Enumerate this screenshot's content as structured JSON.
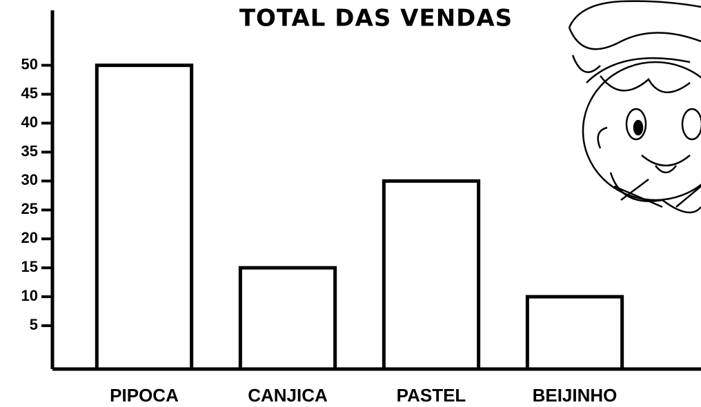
{
  "chart_data": {
    "type": "bar",
    "title": "TOTAL DAS VENDAS",
    "categories": [
      "PIPOCA",
      "CANJICA",
      "PASTEL",
      "BEIJINHO"
    ],
    "values": [
      50,
      15,
      30,
      10
    ],
    "color": "#ffffff",
    "ylim": [
      -2.5,
      59.5
    ],
    "yticks": [
      5,
      10,
      15,
      20,
      25,
      30,
      35,
      40,
      45,
      50
    ],
    "grid": false
  }
}
